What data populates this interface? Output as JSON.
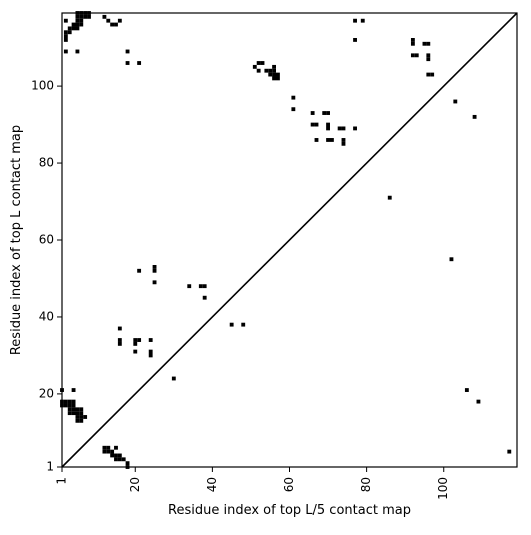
{
  "chart_data": {
    "type": "heatmap",
    "title": "",
    "xlabel": "Residue index of top L/5 contact map",
    "ylabel": "Residue index of top L contact map",
    "xlim": [
      1,
      119
    ],
    "ylim": [
      1,
      119
    ],
    "x_ticks": [
      1,
      20,
      40,
      60,
      80,
      100
    ],
    "y_ticks": [
      1,
      20,
      40,
      60,
      80,
      100
    ],
    "x_tick_labels": [
      "1",
      "20",
      "40",
      "60",
      "80",
      "100"
    ],
    "y_tick_labels": [
      "1",
      "20",
      "40",
      "60",
      "80",
      "100"
    ],
    "diagonal_line": true,
    "grid": false,
    "legend": "none",
    "colors": {
      "contact": "#000000",
      "background": "#ffffff"
    },
    "lower_triangle_contacts": [
      [
        1,
        21
      ],
      [
        4,
        21
      ],
      [
        1,
        17
      ],
      [
        2,
        17
      ],
      [
        3,
        17
      ],
      [
        4,
        17
      ],
      [
        1,
        18
      ],
      [
        2,
        18
      ],
      [
        3,
        18
      ],
      [
        4,
        18
      ],
      [
        3,
        15
      ],
      [
        4,
        15
      ],
      [
        5,
        15
      ],
      [
        6,
        15
      ],
      [
        3,
        16
      ],
      [
        4,
        16
      ],
      [
        5,
        16
      ],
      [
        6,
        16
      ],
      [
        5,
        13
      ],
      [
        6,
        13
      ],
      [
        5,
        14
      ],
      [
        6,
        14
      ],
      [
        7,
        14
      ],
      [
        12,
        6
      ],
      [
        13,
        6
      ],
      [
        12,
        5
      ],
      [
        13,
        5
      ],
      [
        14,
        5
      ],
      [
        15,
        6
      ],
      [
        14,
        4
      ],
      [
        15,
        4
      ],
      [
        16,
        4
      ],
      [
        15,
        3
      ],
      [
        16,
        3
      ],
      [
        17,
        3
      ],
      [
        18,
        2
      ],
      [
        18,
        1
      ],
      [
        16,
        37
      ],
      [
        16,
        34
      ],
      [
        16,
        33
      ],
      [
        20,
        34
      ],
      [
        21,
        34
      ],
      [
        20,
        33
      ],
      [
        20,
        31
      ],
      [
        21,
        52
      ],
      [
        25,
        53
      ],
      [
        25,
        52
      ],
      [
        25,
        49
      ],
      [
        24,
        34
      ],
      [
        24,
        31
      ],
      [
        24,
        30
      ],
      [
        30,
        24
      ],
      [
        34,
        48
      ],
      [
        37,
        48
      ],
      [
        38,
        48
      ],
      [
        38,
        45
      ],
      [
        45,
        38
      ],
      [
        48,
        38
      ],
      [
        86,
        71
      ],
      [
        102,
        55
      ],
      [
        106,
        21
      ],
      [
        109,
        18
      ],
      [
        117,
        5
      ]
    ],
    "upper_triangle_contacts": [
      [
        5,
        119
      ],
      [
        6,
        119
      ],
      [
        7,
        119
      ],
      [
        8,
        119
      ],
      [
        5,
        118
      ],
      [
        6,
        118
      ],
      [
        7,
        118
      ],
      [
        8,
        118
      ],
      [
        5,
        117
      ],
      [
        6,
        117
      ],
      [
        4,
        116
      ],
      [
        5,
        116
      ],
      [
        6,
        116
      ],
      [
        3,
        115
      ],
      [
        4,
        115
      ],
      [
        5,
        115
      ],
      [
        2,
        114
      ],
      [
        3,
        114
      ],
      [
        2,
        113
      ],
      [
        2,
        112
      ],
      [
        2,
        117
      ],
      [
        2,
        109
      ],
      [
        5,
        109
      ],
      [
        12,
        118
      ],
      [
        13,
        117
      ],
      [
        14,
        116
      ],
      [
        15,
        116
      ],
      [
        16,
        117
      ],
      [
        18,
        109
      ],
      [
        18,
        106
      ],
      [
        21,
        106
      ],
      [
        51,
        105
      ],
      [
        52,
        106
      ],
      [
        53,
        106
      ],
      [
        52,
        104
      ],
      [
        54,
        104
      ],
      [
        55,
        104
      ],
      [
        56,
        104
      ],
      [
        55,
        103
      ],
      [
        56,
        103
      ],
      [
        57,
        103
      ],
      [
        56,
        102
      ],
      [
        57,
        102
      ],
      [
        56,
        105
      ],
      [
        61,
        97
      ],
      [
        61,
        94
      ],
      [
        66,
        93
      ],
      [
        69,
        93
      ],
      [
        70,
        93
      ],
      [
        66,
        90
      ],
      [
        67,
        90
      ],
      [
        70,
        90
      ],
      [
        70,
        89
      ],
      [
        73,
        89
      ],
      [
        74,
        89
      ],
      [
        77,
        89
      ],
      [
        67,
        86
      ],
      [
        70,
        86
      ],
      [
        71,
        86
      ],
      [
        74,
        86
      ],
      [
        74,
        85
      ],
      [
        77,
        117
      ],
      [
        79,
        117
      ],
      [
        77,
        112
      ],
      [
        92,
        112
      ],
      [
        92,
        111
      ],
      [
        95,
        111
      ],
      [
        96,
        111
      ],
      [
        92,
        108
      ],
      [
        93,
        108
      ],
      [
        96,
        108
      ],
      [
        96,
        107
      ],
      [
        96,
        103
      ],
      [
        97,
        103
      ],
      [
        103,
        96
      ],
      [
        108,
        92
      ]
    ]
  }
}
